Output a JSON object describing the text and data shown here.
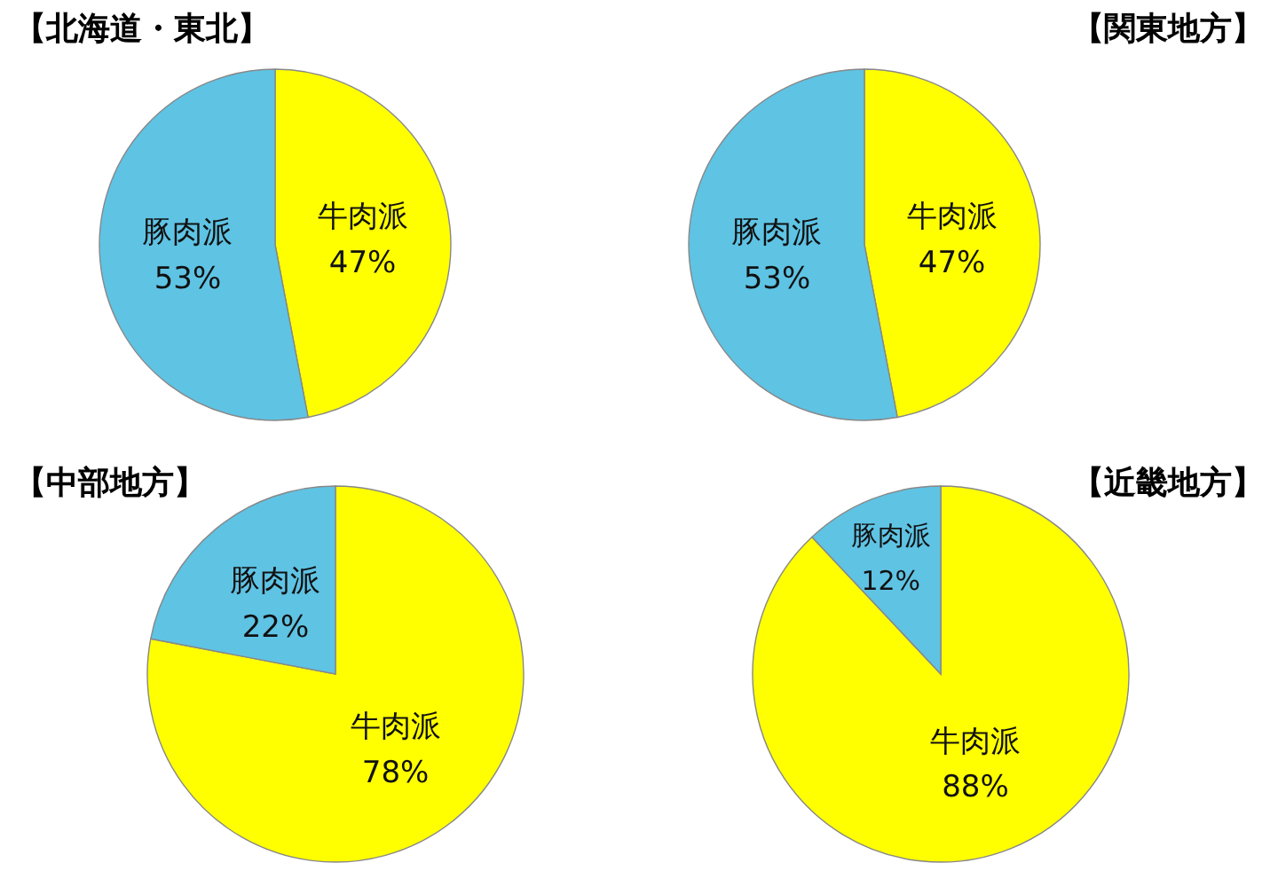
{
  "chart_data": [
    {
      "type": "pie",
      "title": "【北海道・東北】",
      "categories": [
        "牛肉派",
        "豚肉派"
      ],
      "values": [
        47,
        53
      ],
      "value_labels": [
        "47%",
        "53%"
      ],
      "colors": [
        "#ffff00",
        "#5fc3e4"
      ]
    },
    {
      "type": "pie",
      "title": "【関東地方】",
      "categories": [
        "牛肉派",
        "豚肉派"
      ],
      "values": [
        47,
        53
      ],
      "value_labels": [
        "47%",
        "53%"
      ],
      "colors": [
        "#ffff00",
        "#5fc3e4"
      ]
    },
    {
      "type": "pie",
      "title": "【中部地方】",
      "categories": [
        "牛肉派",
        "豚肉派"
      ],
      "values": [
        78,
        22
      ],
      "value_labels": [
        "78%",
        "22%"
      ],
      "colors": [
        "#ffff00",
        "#5fc3e4"
      ]
    },
    {
      "type": "pie",
      "title": "【近畿地方】",
      "categories": [
        "牛肉派",
        "豚肉派"
      ],
      "values": [
        88,
        12
      ],
      "value_labels": [
        "88%",
        "12%"
      ],
      "colors": [
        "#ffff00",
        "#5fc3e4"
      ]
    }
  ]
}
